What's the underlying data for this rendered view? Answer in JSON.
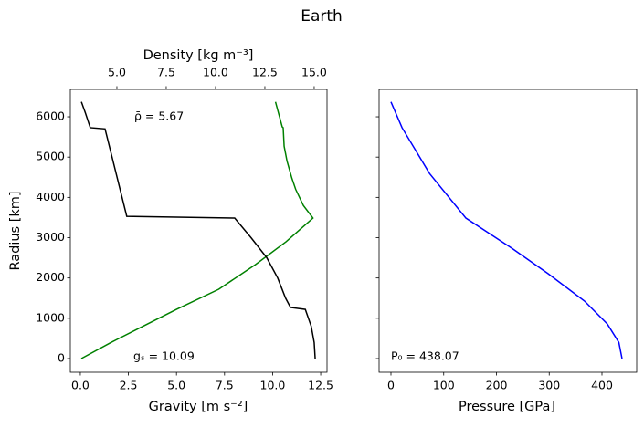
{
  "title": "Earth",
  "chart_data": [
    {
      "type": "line",
      "ylabel": "Radius [km]",
      "xlabel": "Gravity [m s⁻²]",
      "x2label": "Density [kg m⁻³]",
      "xlabel_color": "#008000",
      "ylim": [
        -340,
        6680
      ],
      "yticks": [
        0,
        1000,
        2000,
        3000,
        4000,
        5000,
        6000
      ],
      "xlim": [
        -0.52,
        12.83
      ],
      "xticks": [
        {
          "value": 0,
          "label": "0.0"
        },
        2.5,
        {
          "value": 5,
          "label": "5.0"
        },
        7.5,
        {
          "value": 10,
          "label": "10.0"
        },
        12.5
      ],
      "x2lim": [
        2.64,
        15.65
      ],
      "x2ticks": [
        {
          "value": 5,
          "label": "5.0"
        },
        7.5,
        {
          "value": 10,
          "label": "10.0"
        },
        12.5,
        {
          "value": 15,
          "label": "15.0"
        }
      ],
      "series": [
        {
          "color": "#008000",
          "axis": "x",
          "x": [
            0.05,
            1.6,
            3.25,
            5.0,
            7.2,
            9.1,
            10.7,
            12.1,
            11.6,
            11.2,
            11.0,
            10.75,
            10.6,
            10.55,
            10.5,
            10.15
          ],
          "y": [
            0,
            400,
            800,
            1221,
            1720,
            2330,
            2900,
            3486,
            3800,
            4200,
            4480,
            4900,
            5270,
            5730,
            5750,
            6371
          ]
        },
        {
          "color": "#000000",
          "axis": "x2",
          "x": [
            15.05,
            15.0,
            14.85,
            14.55,
            13.8,
            13.55,
            13.15,
            12.6,
            11.8,
            10.97,
            5.5,
            4.4,
            3.65,
            3.4,
            3.2
          ],
          "y": [
            0,
            400,
            800,
            1221,
            1268,
            1500,
            2000,
            2500,
            3000,
            3486,
            3530,
            5700,
            5730,
            6100,
            6371
          ]
        }
      ],
      "annotations": [
        "ρ̄ = 5.67",
        "gₛ = 10.09"
      ]
    },
    {
      "type": "line",
      "xlabel": "Pressure [GPa]",
      "xlabel_color": "#0000ff",
      "ylim": [
        -340,
        6680
      ],
      "yticks": [
        0,
        1000,
        2000,
        3000,
        4000,
        5000,
        6000
      ],
      "xlim": [
        -22.5,
        465.8
      ],
      "xticks": [
        0,
        100,
        200,
        300,
        400
      ],
      "series": [
        {
          "color": "#0000ff",
          "axis": "x",
          "x": [
            438,
            432,
            410,
            367,
            298,
            229,
            142,
            73,
            21,
            0
          ],
          "y": [
            0,
            400,
            860,
            1426,
            2105,
            2740,
            3486,
            4595,
            5730,
            6371
          ]
        }
      ],
      "annotations": [
        "P₀ = 438.07"
      ]
    }
  ]
}
